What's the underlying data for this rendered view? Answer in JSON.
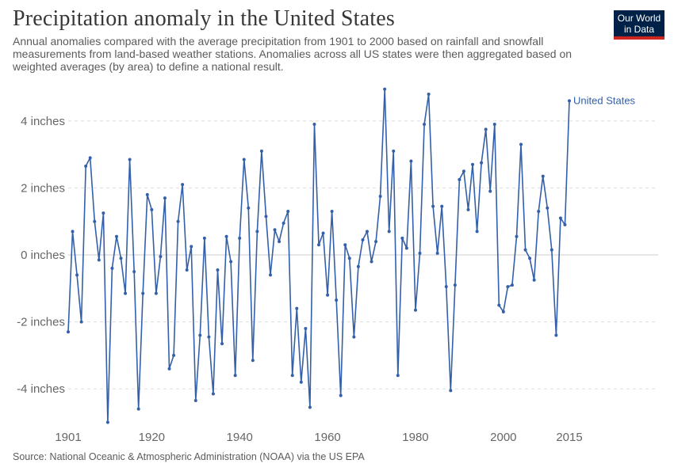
{
  "header": {
    "title": "Precipitation anomaly in the United States",
    "subtitle": "Annual anomalies compared with the average precipitation from 1901 to 2000 based on rainfall and snowfall measurements from land-based weather stations. Anomalies across all US states were then aggregated based on weighted averages (by area) to define a national result."
  },
  "logo": {
    "line1": "Our World",
    "line2": "in Data"
  },
  "source": "Source: National Oceanic & Atmospheric Administration (NOAA) via the US EPA",
  "colors": {
    "line": "#3360a9",
    "grid": "#dddddd",
    "zero": "#cccccc",
    "logo_bg": "#002147",
    "logo_accent": "#ce261e"
  },
  "chart_data": {
    "type": "line",
    "title": "Precipitation anomaly in the United States",
    "xlabel": "",
    "ylabel": "",
    "xlim": [
      1901,
      2015
    ],
    "ylim": [
      -5,
      5
    ],
    "y_ticks": [
      -4,
      -2,
      0,
      2,
      4
    ],
    "y_tick_labels": [
      "-4 inches",
      "-2 inches",
      "0 inches",
      "2 inches",
      "4 inches"
    ],
    "x_ticks": [
      1901,
      1920,
      1940,
      1960,
      1980,
      2000,
      2015
    ],
    "x_tick_labels": [
      "1901",
      "1920",
      "1940",
      "1960",
      "1980",
      "2000",
      "2015"
    ],
    "grid": "horizontal dashed",
    "series": [
      {
        "name": "United States",
        "x": [
          1901,
          1902,
          1903,
          1904,
          1905,
          1906,
          1907,
          1908,
          1909,
          1910,
          1911,
          1912,
          1913,
          1914,
          1915,
          1916,
          1917,
          1918,
          1919,
          1920,
          1921,
          1922,
          1923,
          1924,
          1925,
          1926,
          1927,
          1928,
          1929,
          1930,
          1931,
          1932,
          1933,
          1934,
          1935,
          1936,
          1937,
          1938,
          1939,
          1940,
          1941,
          1942,
          1943,
          1944,
          1945,
          1946,
          1947,
          1948,
          1949,
          1950,
          1951,
          1952,
          1953,
          1954,
          1955,
          1956,
          1957,
          1958,
          1959,
          1960,
          1961,
          1962,
          1963,
          1964,
          1965,
          1966,
          1967,
          1968,
          1969,
          1970,
          1971,
          1972,
          1973,
          1974,
          1975,
          1976,
          1977,
          1978,
          1979,
          1980,
          1981,
          1982,
          1983,
          1984,
          1985,
          1986,
          1987,
          1988,
          1989,
          1990,
          1991,
          1992,
          1993,
          1994,
          1995,
          1996,
          1997,
          1998,
          1999,
          2000,
          2001,
          2002,
          2003,
          2004,
          2005,
          2006,
          2007,
          2008,
          2009,
          2010,
          2011,
          2012,
          2013,
          2014,
          2015
        ],
        "y": [
          -2.3,
          0.7,
          -0.6,
          -2.0,
          2.65,
          2.9,
          1.0,
          -0.15,
          1.25,
          -5.0,
          -0.4,
          0.55,
          -0.1,
          -1.15,
          2.85,
          -0.5,
          -4.6,
          -1.15,
          1.8,
          1.35,
          -1.15,
          -0.05,
          1.7,
          -3.4,
          -3.0,
          1.0,
          2.1,
          -0.45,
          0.25,
          -4.35,
          -2.4,
          0.5,
          -2.45,
          -4.15,
          -0.45,
          -2.65,
          0.55,
          -0.2,
          -3.6,
          0.5,
          2.85,
          1.4,
          -3.15,
          0.7,
          3.1,
          1.15,
          -0.6,
          0.75,
          0.4,
          0.95,
          1.3,
          -3.6,
          -1.6,
          -3.8,
          -2.2,
          -4.55,
          3.9,
          0.3,
          0.65,
          -1.2,
          1.3,
          -1.35,
          -4.2,
          0.3,
          -0.1,
          -2.45,
          -0.35,
          0.45,
          0.7,
          -0.2,
          0.4,
          1.75,
          4.95,
          0.7,
          3.1,
          -3.6,
          0.5,
          0.2,
          2.8,
          -1.65,
          0.05,
          3.9,
          4.8,
          1.45,
          0.05,
          1.45,
          -0.95,
          -4.05,
          -0.9,
          2.25,
          2.5,
          1.35,
          2.7,
          0.7,
          2.75,
          3.75,
          1.9,
          3.9,
          -1.5,
          -1.7,
          -0.95,
          -0.9,
          0.55,
          3.3,
          0.15,
          -0.1,
          -0.75,
          1.3,
          2.35,
          1.4,
          0.15,
          -2.4,
          1.1,
          0.9,
          4.6
        ]
      }
    ]
  }
}
